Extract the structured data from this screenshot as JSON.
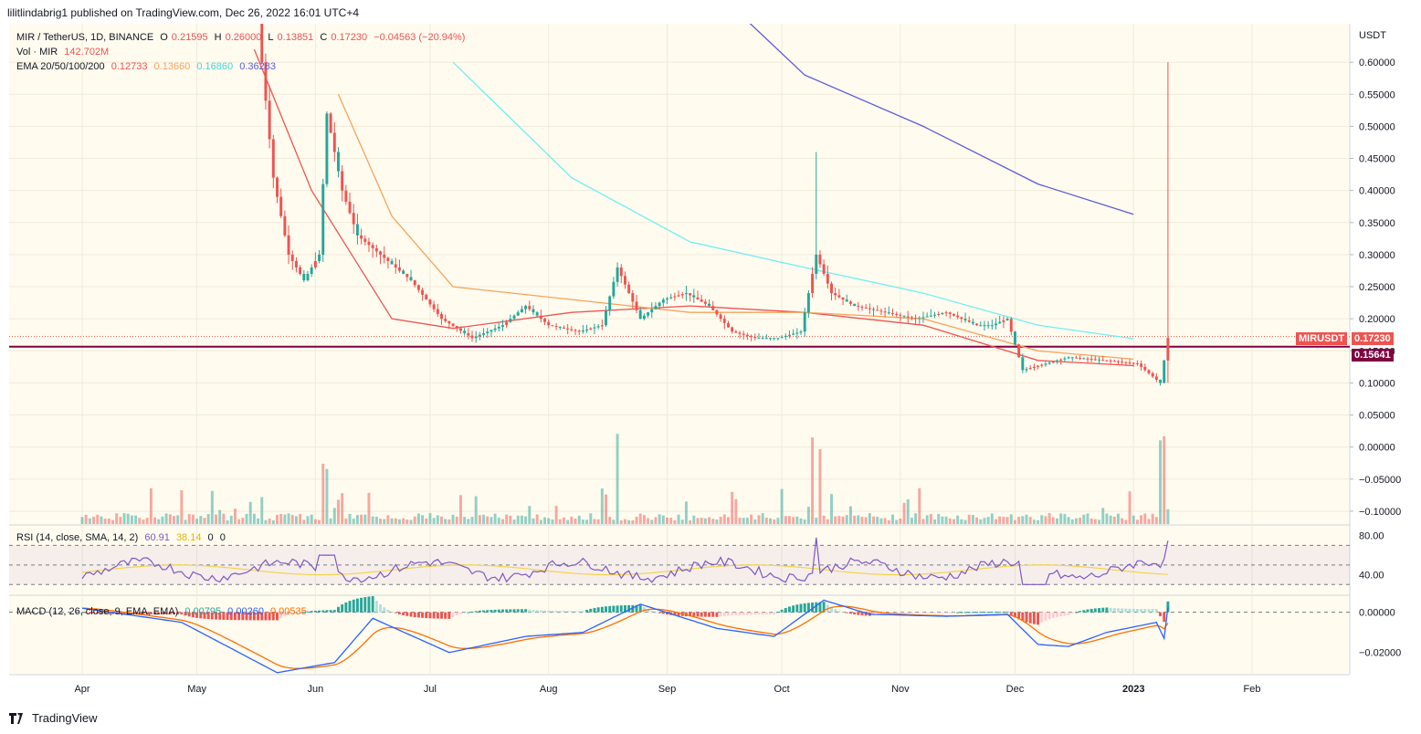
{
  "header": {
    "publish_text": "lilitlindabrig1 published on TradingView.com, Dec 26, 2022 16:01 UTC+4"
  },
  "legend": {
    "symbol": "MIR / TetherUS, 1D, BINANCE",
    "ohlc": [
      "O",
      "0.21595",
      "H",
      "0.26000",
      "L",
      "0.13851",
      "C",
      "0.17230",
      "−0.04563 (−20.94%)"
    ],
    "vol_label": "Vol · MIR",
    "vol_value": "142.702M",
    "ema_label": "EMA 20/50/100/200",
    "ema_values": [
      "0.12733",
      "0.13660",
      "0.16860",
      "0.36283"
    ],
    "rsi_label": "RSI (14, close, SMA, 14, 2)",
    "rsi_values": [
      "60.91",
      "38.14",
      "0",
      "0"
    ],
    "macd_label": "MACD (12, 26, close, 9, EMA, EMA)",
    "macd_values": [
      "0.00795",
      "0.00260",
      "0.00535"
    ]
  },
  "price_tags": {
    "symbol_tag": "MIRUSDT",
    "last_price": "0.17230",
    "line_price": "0.15641"
  },
  "footer": {
    "brand": "TradingView"
  },
  "colors": {
    "bg": "#fffbef",
    "up": "#26a69a",
    "down": "#ef5350",
    "ema20": "#ef5350",
    "ema50": "#f7a35c",
    "ema100": "#6ef0f0",
    "ema200": "#5b5bdb",
    "hline": "#800040",
    "rsi": "#7e57c2",
    "rsi_ma": "#f5d34a",
    "macd": "#2962ff",
    "signal": "#ff6d00"
  },
  "chart_data": [
    {
      "type": "candlestick",
      "title": "MIR / TetherUS, 1D, BINANCE",
      "x_ticks": [
        "Apr",
        "May",
        "Jun",
        "Jul",
        "Aug",
        "Sep",
        "Oct",
        "Nov",
        "Dec",
        "2023",
        "Feb"
      ],
      "y_ticks": [
        "0.60000",
        "0.55000",
        "0.50000",
        "0.45000",
        "0.40000",
        "0.35000",
        "0.30000",
        "0.25000",
        "0.20000",
        "0.15000",
        "0.10000",
        "0.05000",
        "0.00000",
        "−0.05000",
        "−0.10000"
      ],
      "ylabel": "USDT",
      "ylim": [
        -0.12,
        0.66
      ],
      "horizontal_line": 0.15641,
      "series": [
        {
          "name": "EMA 20",
          "x": [
            "May 10",
            "May 25",
            "Jun 15",
            "Jul 1",
            "Aug 1",
            "Sep 1",
            "Oct 1",
            "Nov 1",
            "Dec 1",
            "Dec 26"
          ],
          "values": [
            0.62,
            0.4,
            0.2,
            0.185,
            0.21,
            0.22,
            0.21,
            0.19,
            0.135,
            0.127
          ]
        },
        {
          "name": "EMA 50",
          "x": [
            "Jun 1",
            "Jun 15",
            "Jul 1",
            "Aug 1",
            "Sep 1",
            "Oct 1",
            "Nov 1",
            "Dec 1",
            "Dec 26"
          ],
          "values": [
            0.55,
            0.36,
            0.25,
            0.23,
            0.21,
            0.21,
            0.2,
            0.15,
            0.137
          ]
        },
        {
          "name": "EMA 100",
          "x": [
            "Jul 1",
            "Aug 1",
            "Sep 1",
            "Oct 1",
            "Nov 1",
            "Dec 1",
            "Dec 26"
          ],
          "values": [
            0.6,
            0.42,
            0.32,
            0.28,
            0.24,
            0.19,
            0.169
          ]
        },
        {
          "name": "EMA 200",
          "x": [
            "Sep 15",
            "Oct 1",
            "Nov 1",
            "Dec 1",
            "Dec 26"
          ],
          "values": [
            0.67,
            0.58,
            0.5,
            0.41,
            0.363
          ]
        }
      ]
    },
    {
      "type": "line",
      "title": "RSI (14, close, SMA, 14, 2)",
      "y_ticks": [
        "80.00",
        "40.00"
      ],
      "ylim": [
        20,
        90
      ],
      "bands": [
        70,
        50,
        30
      ],
      "last_values": [
        60.91,
        38.14
      ]
    },
    {
      "type": "bar",
      "title": "MACD (12, 26, close, 9, EMA, EMA)",
      "y_ticks": [
        "0.00000",
        "−0.02000"
      ],
      "ylim": [
        -0.031,
        0.008
      ],
      "last_values": {
        "macd": 0.00795,
        "signal": 0.0026,
        "histogram": 0.00535
      }
    }
  ]
}
